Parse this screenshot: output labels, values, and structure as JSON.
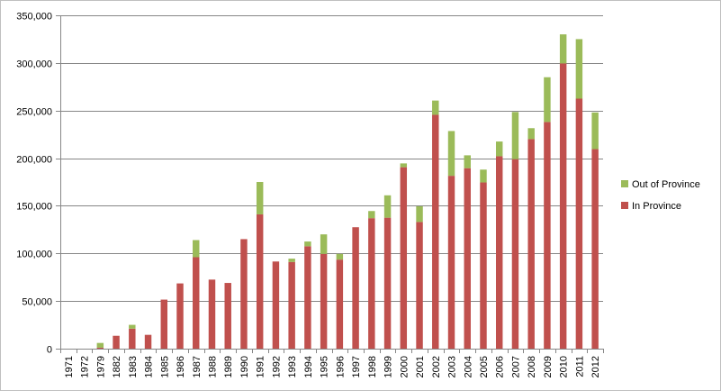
{
  "chart_data": {
    "type": "bar",
    "stacked": true,
    "title": "",
    "xlabel": "",
    "ylabel": "",
    "ylim": [
      0,
      350000
    ],
    "yticks": [
      0,
      50000,
      100000,
      150000,
      200000,
      250000,
      300000,
      350000
    ],
    "ytick_labels": [
      "0",
      "50,000",
      "100,000",
      "150,000",
      "200,000",
      "250,000",
      "300,000",
      "350,000"
    ],
    "grid": true,
    "legend_position": "right",
    "categories": [
      "1971",
      "1972",
      "1979",
      "1882",
      "1983",
      "1984",
      "1985",
      "1986",
      "1987",
      "1988",
      "1989",
      "1990",
      "1991",
      "1992",
      "1993",
      "1994",
      "1995",
      "1996",
      "1997",
      "1998",
      "1999",
      "2000",
      "2001",
      "2002",
      "2003",
      "2004",
      "2005",
      "2006",
      "2007",
      "2008",
      "2009",
      "2010",
      "2011",
      "2012"
    ],
    "series": [
      {
        "name": "In Province",
        "color": "#c0504d",
        "values": [
          0,
          0,
          1000,
          13500,
          21000,
          14500,
          51500,
          68500,
          96000,
          72500,
          69000,
          115000,
          141000,
          91500,
          91000,
          107500,
          99500,
          93500,
          127500,
          137000,
          137500,
          190500,
          133000,
          245500,
          181500,
          189500,
          174500,
          202000,
          199000,
          220000,
          238000,
          299500,
          262500,
          209500
        ]
      },
      {
        "name": "Out of Province",
        "color": "#9bbb59",
        "values": [
          0,
          0,
          5000,
          0,
          4000,
          0,
          0,
          0,
          18000,
          0,
          0,
          0,
          34000,
          0,
          3500,
          5000,
          20500,
          6000,
          0,
          7500,
          23500,
          4000,
          16500,
          15000,
          47000,
          13500,
          13500,
          15500,
          49500,
          11500,
          47000,
          30500,
          62500,
          38500
        ]
      }
    ],
    "legend": [
      "Out of Province",
      "In Province"
    ]
  }
}
